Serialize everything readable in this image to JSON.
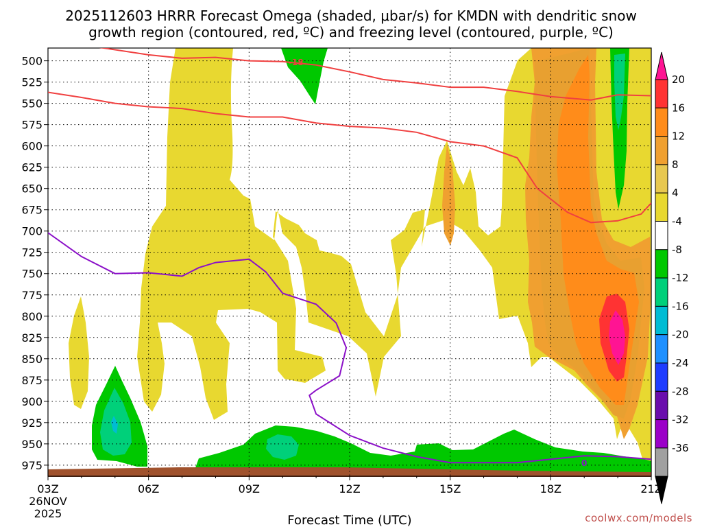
{
  "chart_data": {
    "type": "contour",
    "title_line1": "2025112603 HRRR Forecast Omega (shaded, μbar/s) for KMDN with dendritic snow",
    "title_line2": "growth region (contoured, red, ºC) and freezing level (contoured, purple, ºC)",
    "xlabel": "Forecast Time (UTC)",
    "ylabel": "",
    "x_ticks": [
      {
        "hour": 0,
        "label": "03Z",
        "sub1": "26NOV",
        "sub2": "2025"
      },
      {
        "hour": 3,
        "label": "06Z"
      },
      {
        "hour": 6,
        "label": "09Z"
      },
      {
        "hour": 9,
        "label": "12Z"
      },
      {
        "hour": 12,
        "label": "15Z"
      },
      {
        "hour": 15,
        "label": "18Z"
      },
      {
        "hour": 18,
        "label": "21Z"
      }
    ],
    "y_ticks": [
      "500",
      "525",
      "550",
      "575",
      "600",
      "625",
      "650",
      "675",
      "700",
      "725",
      "750",
      "775",
      "800",
      "825",
      "850",
      "875",
      "900",
      "925",
      "950",
      "975"
    ],
    "ylim_mb": [
      988,
      485
    ],
    "xlim_hours": [
      0,
      18
    ],
    "colorbar": {
      "ticks": [
        "20",
        "16",
        "12",
        "8",
        "4",
        "-4",
        "-8",
        "-12",
        "-16",
        "-20",
        "-24",
        "-28",
        "-32",
        "-36"
      ],
      "colors": [
        "#ff1493",
        "#ff3333",
        "#ff8c1a",
        "#f0a030",
        "#e8c850",
        "#e8d830",
        "#ffffff",
        "#00c800",
        "#00d07a",
        "#00bcd4",
        "#1e90ff",
        "#1e3cff",
        "#6a0dad",
        "#9b00c8",
        "#a0a0a0",
        "#000000"
      ]
    },
    "contours": {
      "dendritic_red_minus12": [
        [
          0,
          537
        ],
        [
          1,
          543
        ],
        [
          2,
          550
        ],
        [
          3,
          554
        ],
        [
          4,
          556
        ],
        [
          5,
          562
        ],
        [
          6,
          566
        ],
        [
          7,
          566
        ],
        [
          8,
          573
        ],
        [
          9,
          577
        ],
        [
          10,
          579
        ],
        [
          11,
          584
        ],
        [
          12,
          595
        ],
        [
          13,
          600
        ],
        [
          14,
          614
        ],
        [
          14.6,
          650
        ],
        [
          15.5,
          678
        ],
        [
          16.2,
          690
        ],
        [
          17,
          688
        ],
        [
          17.7,
          680
        ],
        [
          18,
          667
        ]
      ],
      "dendritic_red_minus18": [
        [
          0,
          474
        ],
        [
          1.5,
          484
        ],
        [
          3,
          493
        ],
        [
          4,
          497
        ],
        [
          5,
          496
        ],
        [
          6,
          500
        ],
        [
          7,
          501
        ],
        [
          8,
          505
        ],
        [
          9,
          513
        ],
        [
          10,
          522
        ],
        [
          11,
          526
        ],
        [
          12,
          531
        ],
        [
          13,
          531
        ],
        [
          14,
          536
        ],
        [
          15,
          542
        ],
        [
          16.2,
          546
        ],
        [
          17,
          540
        ],
        [
          18,
          541
        ]
      ],
      "freezing_purple_0": [
        [
          0,
          702
        ],
        [
          1,
          730
        ],
        [
          2,
          750
        ],
        [
          3,
          749
        ],
        [
          4,
          753
        ],
        [
          4.5,
          743
        ],
        [
          5,
          737
        ],
        [
          6,
          733
        ],
        [
          6.5,
          748
        ],
        [
          7,
          773
        ],
        [
          8,
          786
        ],
        [
          8.6,
          808
        ],
        [
          8.9,
          837
        ],
        [
          8.7,
          870
        ],
        [
          8,
          887
        ],
        [
          7.8,
          893
        ],
        [
          8,
          915
        ],
        [
          9,
          940
        ],
        [
          10,
          955
        ],
        [
          11,
          965
        ],
        [
          12,
          972
        ],
        [
          13,
          972
        ],
        [
          14,
          972
        ],
        [
          15,
          968
        ],
        [
          16,
          964
        ],
        [
          17,
          965
        ],
        [
          18,
          968
        ]
      ]
    },
    "contour_labels": {
      "red": "-18",
      "purple": "0"
    }
  },
  "watermark": "coolwx.com/models"
}
